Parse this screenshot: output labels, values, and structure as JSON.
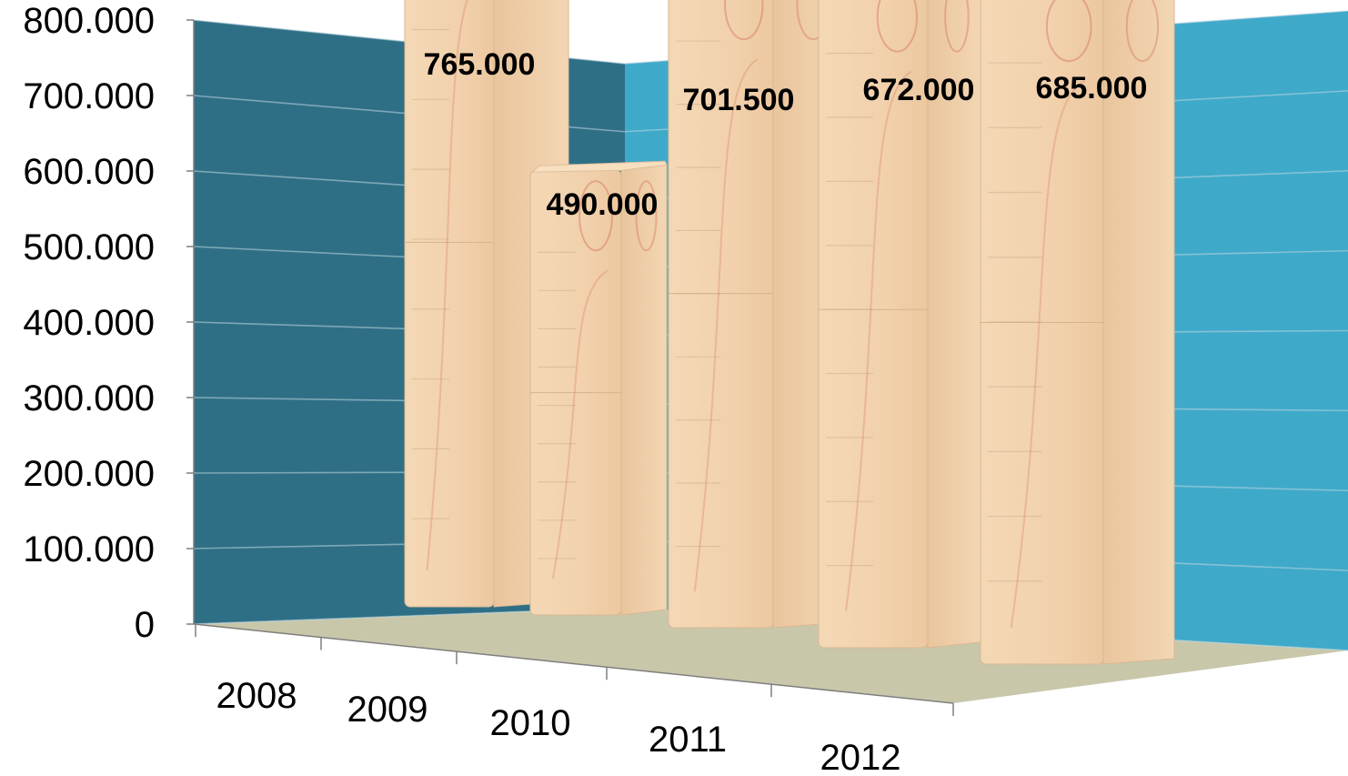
{
  "chart_data": {
    "type": "bar",
    "title": "",
    "xlabel": "",
    "ylabel": "",
    "categories": [
      "2008",
      "2009",
      "2010",
      "2011",
      "2012"
    ],
    "values": [
      765000,
      490000,
      701500,
      672000,
      685000
    ],
    "data_labels": [
      "765.000",
      "490.000",
      "701.500",
      "672.000",
      "685.000"
    ],
    "ylim": [
      0,
      800000
    ],
    "y_ticks": [
      0,
      100000,
      200000,
      300000,
      400000,
      500000,
      600000,
      700000,
      800000
    ],
    "y_tick_labels": [
      "0",
      "100.000",
      "200.000",
      "300.000",
      "400.000",
      "500.000",
      "600.000",
      "700.000",
      "800.000"
    ],
    "grid": true,
    "style": "3d-column",
    "colors": {
      "left_wall": "#2f6f86",
      "back_wall": "#3fa9c9",
      "floor": "#c9c7aa",
      "bar_front": "#f2d4b0",
      "bar_side": "#e8c49c",
      "bar_top": "#f7dfc0",
      "bar_pattern": "#d9826a"
    }
  }
}
